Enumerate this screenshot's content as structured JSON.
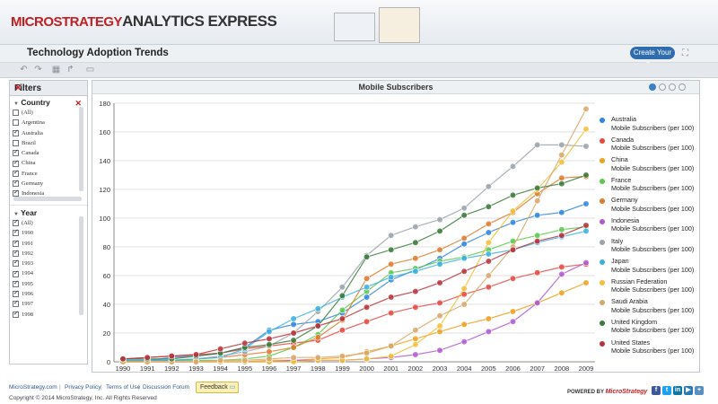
{
  "app": {
    "brand_ms": "MICROSTRATEGY",
    "brand_ae": "ANALYTICS EXPRESS"
  },
  "dashboard": {
    "title": "Technology Adoption Trends",
    "create_label": "Create Your Own"
  },
  "filters": {
    "title": "Filters",
    "country_label": "Country",
    "countries": [
      {
        "label": "(All)",
        "checked": false
      },
      {
        "label": "Argentina",
        "checked": false
      },
      {
        "label": "Australia",
        "checked": true
      },
      {
        "label": "Brazil",
        "checked": false
      },
      {
        "label": "Canada",
        "checked": true
      },
      {
        "label": "China",
        "checked": true
      },
      {
        "label": "France",
        "checked": true
      },
      {
        "label": "Germany",
        "checked": true
      },
      {
        "label": "Indonesia",
        "checked": true
      }
    ],
    "year_label": "Year",
    "years": [
      {
        "label": "(All)",
        "checked": true
      },
      {
        "label": "1990",
        "checked": true
      },
      {
        "label": "1991",
        "checked": true
      },
      {
        "label": "1992",
        "checked": true
      },
      {
        "label": "1993",
        "checked": true
      },
      {
        "label": "1994",
        "checked": true
      },
      {
        "label": "1995",
        "checked": true
      },
      {
        "label": "1996",
        "checked": true
      },
      {
        "label": "1997",
        "checked": true
      },
      {
        "label": "1998",
        "checked": true
      }
    ]
  },
  "chart_data": {
    "type": "line",
    "title": "Mobile Subscribers",
    "xlabel": "",
    "ylabel": "",
    "x": [
      1990,
      1991,
      1992,
      1993,
      1994,
      1995,
      1996,
      1997,
      1998,
      1999,
      2000,
      2001,
      2002,
      2003,
      2004,
      2005,
      2006,
      2007,
      2008,
      2009
    ],
    "ylim": [
      0,
      180
    ],
    "yticks": [
      0,
      20,
      40,
      60,
      80,
      100,
      120,
      140,
      160,
      180
    ],
    "legend_position": "right",
    "series": [
      {
        "name": "Australia",
        "sub": "Mobile Subscribers (per 100)",
        "color": "#2e86de",
        "values": [
          1,
          1,
          3,
          4,
          6,
          10,
          22,
          26,
          28,
          34,
          45,
          57,
          64,
          72,
          82,
          90,
          97,
          102,
          104,
          110
        ]
      },
      {
        "name": "Canada",
        "sub": "Mobile Subscribers (per 100)",
        "color": "#e8483e",
        "values": [
          2,
          3,
          4,
          5,
          6,
          9,
          11,
          13,
          15,
          22,
          28,
          34,
          38,
          41,
          47,
          52,
          58,
          62,
          66,
          68
        ]
      },
      {
        "name": "China",
        "sub": "Mobile Subscribers (per 100)",
        "color": "#f0a020",
        "values": [
          0,
          0,
          0,
          0,
          0,
          0,
          1,
          1,
          2,
          3,
          7,
          11,
          16,
          21,
          26,
          30,
          35,
          41,
          48,
          55
        ]
      },
      {
        "name": "France",
        "sub": "Mobile Subscribers (per 100)",
        "color": "#5cc84c",
        "values": [
          1,
          1,
          1,
          1,
          1,
          2,
          4,
          10,
          19,
          36,
          49,
          62,
          65,
          70,
          73,
          78,
          84,
          88,
          92,
          94
        ]
      },
      {
        "name": "Germany",
        "sub": "Mobile Subscribers (per 100)",
        "color": "#e07a2b",
        "values": [
          0,
          1,
          1,
          2,
          3,
          5,
          7,
          10,
          17,
          29,
          58,
          68,
          72,
          78,
          86,
          96,
          104,
          117,
          128,
          129
        ]
      },
      {
        "name": "Indonesia",
        "sub": "Mobile Subscribers (per 100)",
        "color": "#b35ad0",
        "values": [
          0,
          0,
          0,
          0,
          0,
          0,
          0,
          1,
          1,
          1,
          2,
          3,
          5,
          8,
          14,
          21,
          28,
          41,
          61,
          69
        ]
      },
      {
        "name": "Italy",
        "sub": "Mobile Subscribers (per 100)",
        "color": "#9aa3ab",
        "values": [
          0,
          1,
          1,
          2,
          4,
          7,
          11,
          20,
          35,
          52,
          74,
          88,
          94,
          99,
          107,
          122,
          136,
          151,
          151,
          150
        ]
      },
      {
        "name": "Japan",
        "sub": "Mobile Subscribers (per 100)",
        "color": "#3ab0e0",
        "values": [
          1,
          1,
          1,
          2,
          3,
          9,
          21,
          30,
          37,
          45,
          52,
          59,
          63,
          68,
          72,
          75,
          78,
          83,
          87,
          91
        ]
      },
      {
        "name": "Russian Federation",
        "sub": "Mobile Subscribers (per 100)",
        "color": "#f2c03a",
        "values": [
          0,
          0,
          0,
          0,
          0,
          0,
          0,
          0,
          1,
          1,
          2,
          4,
          12,
          25,
          51,
          83,
          105,
          120,
          139,
          162
        ]
      },
      {
        "name": "Saudi Arabia",
        "sub": "Mobile Subscribers (per 100)",
        "color": "#d8a86a",
        "values": [
          0,
          0,
          0,
          0,
          1,
          1,
          2,
          3,
          3,
          4,
          6,
          11,
          22,
          32,
          40,
          60,
          80,
          112,
          144,
          176
        ]
      },
      {
        "name": "United Kingdom",
        "sub": "Mobile Subscribers (per 100)",
        "color": "#3a7a3a",
        "values": [
          2,
          2,
          2,
          4,
          6,
          10,
          12,
          15,
          25,
          46,
          73,
          78,
          83,
          91,
          102,
          108,
          116,
          121,
          124,
          130
        ]
      },
      {
        "name": "United States",
        "sub": "Mobile Subscribers (per 100)",
        "color": "#b8323a",
        "values": [
          2,
          3,
          4,
          5,
          9,
          13,
          16,
          20,
          25,
          30,
          38,
          45,
          49,
          55,
          63,
          70,
          78,
          84,
          88,
          95
        ]
      }
    ]
  },
  "footer": {
    "link1": "MicroStrategy.com",
    "link2": "Privacy Policy",
    "link3": "Terms of Use",
    "link4": "Discussion Forum",
    "feedback": "Feedback",
    "copyright": "Copyright © 2014 MicroStrategy, Inc. All Rights Reserved",
    "powered_by": "POWERED BY",
    "powered_ms": "MicroStrategy"
  },
  "colors": {
    "accent": "#2f6db0",
    "brand_red": "#c21f24"
  }
}
